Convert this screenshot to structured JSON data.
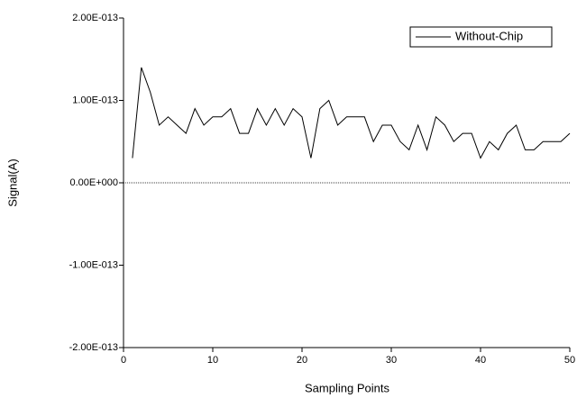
{
  "chart_data": {
    "type": "line",
    "x_label": "Sampling Points",
    "y_label": "Signal(A)",
    "x": [
      1,
      2,
      3,
      4,
      5,
      6,
      7,
      8,
      9,
      10,
      11,
      12,
      13,
      14,
      15,
      16,
      17,
      18,
      19,
      20,
      21,
      22,
      23,
      24,
      25,
      26,
      27,
      28,
      29,
      30,
      31,
      32,
      33,
      34,
      35,
      36,
      37,
      38,
      39,
      40,
      41,
      42,
      43,
      44,
      45,
      46,
      47,
      48,
      49,
      50
    ],
    "series": [
      {
        "name": "Without-Chip",
        "color": "#000000",
        "values": [
          3e-14,
          1.4e-13,
          1.1e-13,
          7e-14,
          8e-14,
          7e-14,
          6e-14,
          9e-14,
          7e-14,
          8e-14,
          8e-14,
          9e-14,
          6e-14,
          6e-14,
          9e-14,
          7e-14,
          9e-14,
          7e-14,
          9e-14,
          8e-14,
          3e-14,
          9e-14,
          1e-13,
          7e-14,
          8e-14,
          8e-14,
          8e-14,
          5e-14,
          7e-14,
          7e-14,
          5e-14,
          4e-14,
          7e-14,
          4e-14,
          8e-14,
          7e-14,
          5e-14,
          6e-14,
          6e-14,
          3e-14,
          5e-14,
          4e-14,
          6e-14,
          7e-14,
          4e-14,
          4e-14,
          5e-14,
          5e-14,
          5e-14,
          6e-14
        ]
      }
    ],
    "xlim": [
      0,
      50
    ],
    "xticks": [
      0,
      10,
      20,
      30,
      40,
      50
    ],
    "ylim": [
      -2e-13,
      2e-13
    ],
    "yticks": [
      {
        "value": -2e-13,
        "label": "-2.00E-013"
      },
      {
        "value": -1e-13,
        "label": "-1.00E-013"
      },
      {
        "value": 0,
        "label": "0.00E+000"
      },
      {
        "value": 1e-13,
        "label": "1.00E-013"
      },
      {
        "value": 2e-13,
        "label": "2.00E-013"
      }
    ],
    "zero_line": true,
    "legend": "top-right"
  }
}
